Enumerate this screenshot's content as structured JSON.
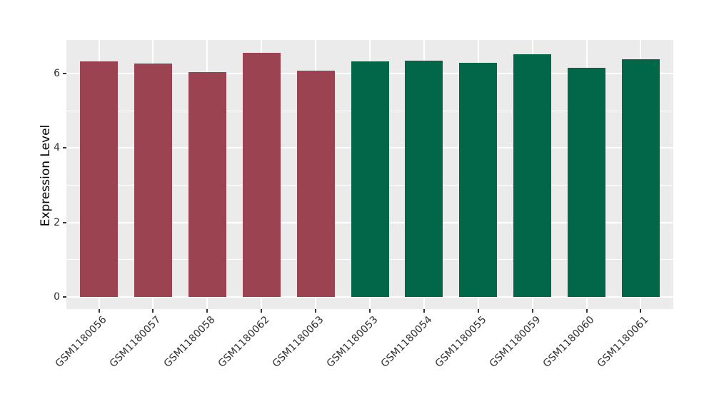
{
  "figure": {
    "background": "#FFFFFF",
    "panel_background": "#EBEBEB",
    "grid_color": "#FFFFFF",
    "axis_text_color": "#303030",
    "axis_title_color": "#000000",
    "tick_color": "#333333"
  },
  "chart_data": {
    "type": "bar",
    "title": "",
    "xlabel": "",
    "ylabel": "Expression Level",
    "ylim": [
      0,
      6.9
    ],
    "yticks": [
      0,
      2,
      4,
      6
    ],
    "yticks_minor": [
      1,
      3,
      5
    ],
    "grid": true,
    "legend_position": "none",
    "categories": [
      "GSM1180056",
      "GSM1180057",
      "GSM1180058",
      "GSM1180062",
      "GSM1180063",
      "GSM1180053",
      "GSM1180054",
      "GSM1180055",
      "GSM1180059",
      "GSM1180060",
      "GSM1180061"
    ],
    "series": [
      {
        "name": "Expression Level",
        "values": [
          6.32,
          6.26,
          6.04,
          6.55,
          6.07,
          6.32,
          6.34,
          6.29,
          6.52,
          6.15,
          6.38
        ]
      }
    ],
    "bar_groups": [
      "group1",
      "group1",
      "group1",
      "group1",
      "group1",
      "group2",
      "group2",
      "group2",
      "group2",
      "group2",
      "group2"
    ],
    "group_colors": {
      "group1": "#9B4351",
      "group2": "#026649"
    }
  }
}
